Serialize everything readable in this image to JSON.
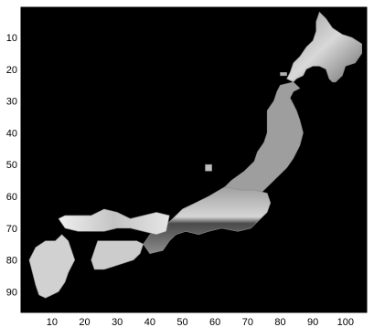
{
  "figure": {
    "background": "#ffffff",
    "plot_background": "#000000",
    "colormap": "grayscale"
  },
  "chart_data": {
    "type": "heatmap",
    "title": "",
    "xlabel": "",
    "ylabel": "",
    "xlim": [
      0.5,
      106.5
    ],
    "ylim": [
      0.5,
      96.5
    ],
    "y_reversed": true,
    "grid": false,
    "legend": "none",
    "x_ticks": [
      10,
      20,
      30,
      40,
      50,
      60,
      70,
      80,
      90,
      100
    ],
    "x_tick_labels": [
      "10",
      "20",
      "30",
      "40",
      "50",
      "60",
      "70",
      "80",
      "90",
      "100"
    ],
    "y_ticks": [
      10,
      20,
      30,
      40,
      50,
      60,
      70,
      80,
      90
    ],
    "y_tick_labels": [
      "10",
      "20",
      "30",
      "40",
      "50",
      "60",
      "70",
      "80",
      "90"
    ],
    "series": [
      {
        "region": "hokkaido",
        "outline": [
          [
            92,
            2
          ],
          [
            94,
            4
          ],
          [
            96,
            7
          ],
          [
            99,
            9
          ],
          [
            102,
            10
          ],
          [
            105,
            12
          ],
          [
            105,
            15
          ],
          [
            103,
            18
          ],
          [
            100,
            19
          ],
          [
            99,
            22
          ],
          [
            98,
            23
          ],
          [
            97,
            24
          ],
          [
            96,
            24
          ],
          [
            95,
            23
          ],
          [
            94,
            20
          ],
          [
            92,
            19
          ],
          [
            90,
            19
          ],
          [
            88,
            20
          ],
          [
            87,
            22
          ],
          [
            85,
            23
          ],
          [
            84,
            24
          ],
          [
            82,
            23
          ],
          [
            83,
            21
          ],
          [
            84,
            18
          ],
          [
            86,
            16
          ],
          [
            88,
            13
          ],
          [
            90,
            11
          ],
          [
            91,
            8
          ],
          [
            91,
            5
          ]
        ],
        "brightness": 0.7
      },
      {
        "region": "honshu-north",
        "outline": [
          [
            84,
            24
          ],
          [
            86,
            26
          ],
          [
            84,
            27
          ],
          [
            83,
            29
          ],
          [
            84,
            31
          ],
          [
            85,
            33
          ],
          [
            86,
            36
          ],
          [
            87,
            40
          ],
          [
            86,
            44
          ],
          [
            84,
            48
          ],
          [
            82,
            51
          ],
          [
            79,
            54
          ],
          [
            76,
            57
          ],
          [
            73,
            60
          ],
          [
            70,
            62
          ],
          [
            66,
            63
          ],
          [
            63,
            62
          ],
          [
            62,
            58
          ],
          [
            65,
            55
          ],
          [
            69,
            52
          ],
          [
            72,
            49
          ],
          [
            73,
            46
          ],
          [
            75,
            43
          ],
          [
            76,
            40
          ],
          [
            76,
            36
          ],
          [
            76,
            33
          ],
          [
            78,
            30
          ],
          [
            79,
            27
          ],
          [
            80,
            25
          ]
        ],
        "brightness": 0.62
      },
      {
        "region": "honshu-central",
        "outline": [
          [
            63,
            57
          ],
          [
            68,
            58
          ],
          [
            72,
            58
          ],
          [
            76,
            59
          ],
          [
            77,
            62
          ],
          [
            76,
            65
          ],
          [
            74,
            67
          ],
          [
            71,
            70
          ],
          [
            67,
            71
          ],
          [
            62,
            70
          ],
          [
            58,
            71
          ],
          [
            55,
            72
          ],
          [
            51,
            71
          ],
          [
            48,
            72
          ],
          [
            46,
            74
          ],
          [
            44,
            77
          ],
          [
            40,
            78
          ],
          [
            38,
            75
          ],
          [
            40,
            72
          ],
          [
            44,
            70
          ],
          [
            47,
            67
          ],
          [
            50,
            64
          ],
          [
            54,
            62
          ],
          [
            58,
            60
          ]
        ],
        "brightness": 0.58
      },
      {
        "region": "honshu-west",
        "outline": [
          [
            46,
            66
          ],
          [
            42,
            65
          ],
          [
            38,
            66
          ],
          [
            34,
            67
          ],
          [
            30,
            65
          ],
          [
            26,
            64
          ],
          [
            22,
            66
          ],
          [
            18,
            66
          ],
          [
            14,
            66
          ],
          [
            12,
            67
          ],
          [
            14,
            70
          ],
          [
            18,
            71
          ],
          [
            22,
            71
          ],
          [
            26,
            71
          ],
          [
            30,
            70
          ],
          [
            34,
            70
          ],
          [
            38,
            71
          ],
          [
            42,
            72
          ],
          [
            45,
            71
          ]
        ],
        "brightness": 0.85
      },
      {
        "region": "shikoku",
        "outline": [
          [
            24,
            74
          ],
          [
            30,
            74
          ],
          [
            36,
            74
          ],
          [
            38,
            75
          ],
          [
            37,
            78
          ],
          [
            35,
            80
          ],
          [
            32,
            81
          ],
          [
            29,
            82
          ],
          [
            26,
            83
          ],
          [
            23,
            83
          ],
          [
            22,
            80
          ],
          [
            23,
            77
          ]
        ],
        "brightness": 0.8
      },
      {
        "region": "kyushu",
        "outline": [
          [
            5,
            76
          ],
          [
            8,
            74
          ],
          [
            11,
            74
          ],
          [
            13,
            72
          ],
          [
            15,
            74
          ],
          [
            16,
            77
          ],
          [
            17,
            80
          ],
          [
            15,
            84
          ],
          [
            14,
            87
          ],
          [
            12,
            90
          ],
          [
            10,
            91
          ],
          [
            8,
            92
          ],
          [
            6,
            91
          ],
          [
            5,
            88
          ],
          [
            4,
            84
          ],
          [
            3,
            80
          ]
        ],
        "brightness": 0.82
      },
      {
        "region": "islands",
        "outline": [
          [
            57,
            50
          ],
          [
            59,
            50
          ],
          [
            59,
            52
          ],
          [
            57,
            52
          ]
        ],
        "brightness": 0.75
      },
      {
        "region": "islands",
        "outline": [
          [
            80,
            21
          ],
          [
            82,
            21
          ],
          [
            82,
            22
          ],
          [
            80,
            22
          ]
        ],
        "brightness": 0.7
      }
    ]
  }
}
